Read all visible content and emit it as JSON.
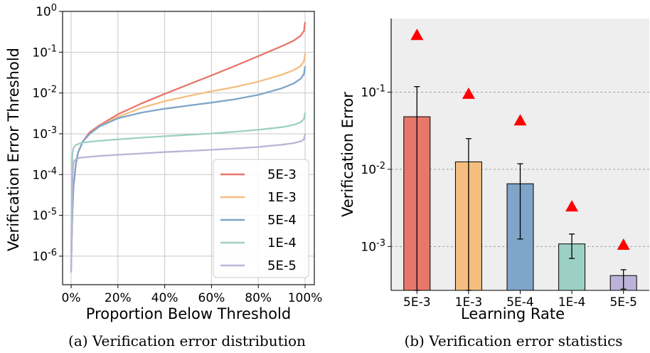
{
  "chart_data": [
    {
      "type": "line",
      "caption": "(a) Verification error distribution",
      "xlabel": "Proportion Below Threshold",
      "ylabel": "Verification Error Threshold",
      "x_tick_labels": [
        "0%",
        "20%",
        "40%",
        "60%",
        "80%",
        "100%"
      ],
      "y_tick_labels": [
        {
          "base": "10",
          "exp": "0"
        },
        {
          "base": "10",
          "exp": "-1"
        },
        {
          "base": "10",
          "exp": "-2"
        },
        {
          "base": "10",
          "exp": "-3"
        },
        {
          "base": "10",
          "exp": "-4"
        },
        {
          "base": "10",
          "exp": "-5"
        },
        {
          "base": "10",
          "exp": "-6"
        }
      ],
      "xlim": [
        0,
        1
      ],
      "ylim": [
        2e-07,
        1
      ],
      "yscale": "log",
      "grid": true,
      "legend_position": "bottom-right",
      "series": [
        {
          "name": "5E-3",
          "color": "#e8776b",
          "x": [
            0.0,
            0.005,
            0.01,
            0.02,
            0.03,
            0.05,
            0.08,
            0.12,
            0.2,
            0.3,
            0.4,
            0.5,
            0.6,
            0.7,
            0.8,
            0.9,
            0.95,
            0.98,
            0.995,
            1.0
          ],
          "y": [
            5e-07,
            1e-05,
            5e-05,
            0.00018,
            0.00035,
            0.00065,
            0.0011,
            0.0016,
            0.003,
            0.0055,
            0.0095,
            0.016,
            0.027,
            0.046,
            0.08,
            0.14,
            0.19,
            0.25,
            0.33,
            0.55
          ]
        },
        {
          "name": "1E-3",
          "color": "#f5be80",
          "x": [
            0.0,
            0.005,
            0.01,
            0.02,
            0.03,
            0.05,
            0.08,
            0.12,
            0.2,
            0.3,
            0.4,
            0.5,
            0.6,
            0.7,
            0.8,
            0.9,
            0.95,
            0.98,
            0.995,
            1.0
          ],
          "y": [
            5e-07,
            1e-05,
            5e-05,
            0.00018,
            0.00035,
            0.00065,
            0.001,
            0.0015,
            0.0026,
            0.0043,
            0.0063,
            0.0084,
            0.011,
            0.014,
            0.019,
            0.028,
            0.036,
            0.045,
            0.06,
            0.095
          ]
        },
        {
          "name": "5E-4",
          "color": "#7fa5c8",
          "x": [
            0.0,
            0.005,
            0.01,
            0.02,
            0.03,
            0.05,
            0.08,
            0.12,
            0.2,
            0.3,
            0.4,
            0.5,
            0.6,
            0.7,
            0.8,
            0.9,
            0.95,
            0.98,
            0.995,
            1.0
          ],
          "y": [
            5e-07,
            1e-05,
            5e-05,
            0.00018,
            0.00035,
            0.00065,
            0.001,
            0.0015,
            0.0024,
            0.0033,
            0.0041,
            0.0049,
            0.0058,
            0.007,
            0.009,
            0.013,
            0.017,
            0.022,
            0.029,
            0.045
          ]
        },
        {
          "name": "1E-4",
          "color": "#9dd0c4",
          "x": [
            0.0,
            0.003,
            0.006,
            0.01,
            0.02,
            0.04,
            0.07,
            0.12,
            0.2,
            0.3,
            0.4,
            0.5,
            0.6,
            0.7,
            0.8,
            0.9,
            0.95,
            0.98,
            0.995,
            1.0
          ],
          "y": [
            4e-07,
            0.0001,
            0.00035,
            0.00045,
            0.00053,
            0.00059,
            0.00063,
            0.00067,
            0.00073,
            0.0008,
            0.00087,
            0.00094,
            0.00102,
            0.00112,
            0.00125,
            0.00145,
            0.00165,
            0.0019,
            0.0023,
            0.0033
          ]
        },
        {
          "name": "5E-5",
          "color": "#bcb3d8",
          "x": [
            0.0,
            0.003,
            0.006,
            0.01,
            0.02,
            0.04,
            0.07,
            0.12,
            0.2,
            0.3,
            0.4,
            0.5,
            0.6,
            0.7,
            0.8,
            0.9,
            0.95,
            0.98,
            0.995,
            1.0
          ],
          "y": [
            4e-07,
            1e-05,
            0.0001,
            0.0002,
            0.00024,
            0.00026,
            0.00027,
            0.000285,
            0.000305,
            0.00033,
            0.000355,
            0.00038,
            0.000405,
            0.000435,
            0.000475,
            0.00054,
            0.00059,
            0.00065,
            0.00073,
            0.001
          ]
        }
      ]
    },
    {
      "type": "bar",
      "caption": "(b) Verification error statistics",
      "xlabel": "Learning Rate",
      "ylabel": "Verification Error",
      "categories": [
        "5E-3",
        "1E-3",
        "5E-4",
        "1E-4",
        "5E-5"
      ],
      "colors": [
        "#e8776b",
        "#f5be80",
        "#7fa5c8",
        "#9dd0c4",
        "#bcb3d8"
      ],
      "yscale": "log",
      "ylim": [
        0.00027,
        0.9
      ],
      "y_tick_labels": [
        {
          "base": "10",
          "exp": "-1"
        },
        {
          "base": "10",
          "exp": "-2"
        },
        {
          "base": "10",
          "exp": "-3"
        }
      ],
      "grid": "y-dashed",
      "background": "#eeeeee",
      "series": [
        {
          "values": [
            0.048,
            0.0125,
            0.0065,
            0.00108,
            0.00042
          ],
          "error_low": [
            0.00027,
            0.00027,
            0.00125,
            0.0007,
            0.00028
          ],
          "error_high": [
            0.118,
            0.025,
            0.0118,
            0.00145,
            0.0005
          ]
        },
        {
          "marker": "triangle",
          "color": "#ff0000",
          "values": [
            0.55,
            0.095,
            0.043,
            0.0033,
            0.00105
          ]
        }
      ]
    }
  ]
}
